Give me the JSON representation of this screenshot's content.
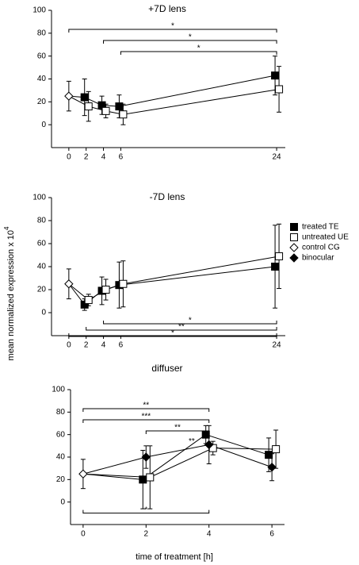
{
  "ylabel": "mean normalized expression x 10",
  "ylabel_exponent": "4",
  "xlabel": "time of treatment [h]",
  "chart_data": [
    {
      "type": "line",
      "title": "+7D lens",
      "xlim": [
        -2,
        25
      ],
      "ylim": [
        -20,
        100
      ],
      "xticks": [
        0,
        2,
        4,
        6,
        24
      ],
      "yticks": [
        0,
        20,
        40,
        60,
        80,
        100
      ],
      "series": [
        {
          "marker": "diamond-open",
          "color": "#000000",
          "x": [
            0
          ],
          "values": [
            25
          ],
          "errors": [
            13
          ]
        },
        {
          "marker": "square-filled",
          "color": "#000000",
          "x": [
            2,
            4,
            6,
            24
          ],
          "values": [
            24,
            17,
            16,
            43
          ],
          "errors": [
            16,
            8,
            10,
            17
          ]
        },
        {
          "marker": "square-open",
          "color": "#000000",
          "x": [
            2,
            4,
            6,
            24
          ],
          "values": [
            16,
            12,
            9,
            31
          ],
          "errors": [
            13,
            6,
            9,
            20
          ]
        }
      ],
      "significance": [
        {
          "from": 0,
          "to": 24,
          "label": "*",
          "side": "above"
        },
        {
          "from": 4,
          "to": 24,
          "label": "*",
          "side": "above"
        },
        {
          "from": 6,
          "to": 24,
          "label": "*",
          "side": "above"
        }
      ]
    },
    {
      "type": "line",
      "title": "-7D lens",
      "xlim": [
        -2,
        25
      ],
      "ylim": [
        -20,
        100
      ],
      "xticks": [
        0,
        2,
        4,
        6,
        24
      ],
      "yticks": [
        0,
        20,
        40,
        60,
        80,
        100
      ],
      "series": [
        {
          "marker": "diamond-open",
          "color": "#000000",
          "x": [
            0
          ],
          "values": [
            25
          ],
          "errors": [
            13
          ]
        },
        {
          "marker": "square-filled",
          "color": "#000000",
          "x": [
            2,
            4,
            6,
            24
          ],
          "values": [
            7,
            19,
            24,
            40
          ],
          "errors": [
            5,
            12,
            20,
            36
          ]
        },
        {
          "marker": "square-open",
          "color": "#000000",
          "x": [
            2,
            4,
            6,
            24
          ],
          "values": [
            11,
            20,
            25,
            49
          ],
          "errors": [
            5,
            9,
            20,
            28
          ]
        }
      ],
      "significance": [
        {
          "from": 4,
          "to": 24,
          "label": "*",
          "side": "below"
        },
        {
          "from": 2,
          "to": 24,
          "label": "**",
          "side": "below"
        },
        {
          "from": 0,
          "to": 24,
          "label": "*",
          "side": "below"
        }
      ],
      "legend": [
        {
          "name": "treated TE",
          "marker": "square-filled"
        },
        {
          "name": "untreated UE",
          "marker": "square-open"
        },
        {
          "name": "control CG",
          "marker": "diamond-open"
        },
        {
          "name": "binocular",
          "marker": "diamond-filled"
        }
      ]
    },
    {
      "type": "line",
      "title": "diffuser",
      "xlim": [
        -0.4,
        6.4
      ],
      "ylim": [
        -20,
        100
      ],
      "xticks": [
        0,
        2,
        4,
        6
      ],
      "yticks": [
        0,
        20,
        40,
        60,
        80,
        100
      ],
      "series": [
        {
          "marker": "diamond-open",
          "color": "#000000",
          "x": [
            0
          ],
          "values": [
            25
          ],
          "errors": [
            13
          ]
        },
        {
          "marker": "square-filled",
          "color": "#000000",
          "x": [
            2,
            4,
            6
          ],
          "values": [
            20,
            60,
            42
          ],
          "errors": [
            26,
            8,
            15
          ]
        },
        {
          "marker": "square-open",
          "color": "#000000",
          "x": [
            2,
            4,
            6
          ],
          "values": [
            22,
            48,
            47
          ],
          "errors": [
            28,
            6,
            17
          ]
        },
        {
          "marker": "diamond-filled",
          "color": "#000000",
          "x": [
            2,
            4,
            6
          ],
          "values": [
            40,
            51,
            31
          ],
          "errors": [
            10,
            17,
            12
          ]
        }
      ],
      "significance": [
        {
          "from": 0,
          "to": 4,
          "label": "**",
          "side": "above"
        },
        {
          "from": 0,
          "to": 4,
          "label": "***",
          "side": "above"
        },
        {
          "from": 2,
          "to": 4,
          "label": "**",
          "side": "above"
        },
        {
          "from": 0,
          "to": 4,
          "label": "*",
          "side": "below"
        }
      ],
      "annotations": [
        {
          "x": 3.45,
          "y": 54,
          "label": "**"
        }
      ]
    }
  ]
}
